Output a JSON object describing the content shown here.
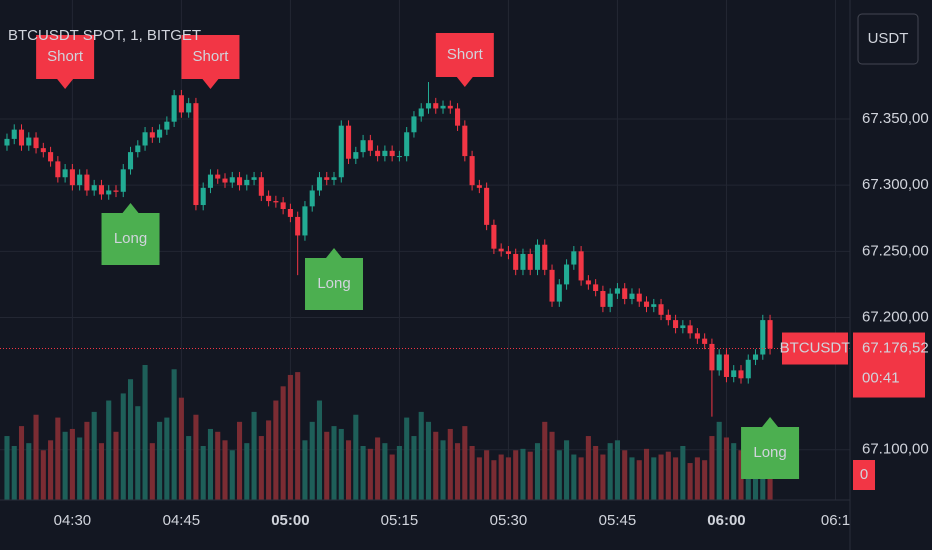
{
  "chart_data": {
    "type": "candlestick",
    "title": "BTCUSDT SPOT, 1, BITGET",
    "currency": "USDT",
    "up_color": "#22ab94",
    "down_color": "#f23645",
    "volume_up_color": "#1e5f59",
    "volume_down_color": "#7b2c33",
    "grid": true,
    "open": [
      67330,
      67335,
      67342,
      67330,
      67336,
      67328,
      67325,
      67318,
      67306,
      67312,
      67300,
      67308,
      67296,
      67300,
      67293,
      67296,
      67295,
      67312,
      67325,
      67330,
      67340,
      67336,
      67342,
      67348,
      67368,
      67355,
      67362,
      67285,
      67298,
      67308,
      67305,
      67302,
      67306,
      67300,
      67304,
      67306,
      67292,
      67288,
      67287,
      67282,
      67276,
      67262,
      67284,
      67296,
      67306,
      67304,
      67306,
      67345,
      67320,
      67325,
      67334,
      67326,
      67322,
      67326,
      67322,
      67322,
      67340,
      67352,
      67358,
      67362,
      67358,
      67360,
      67358,
      67345,
      67322,
      67300,
      67298,
      67270,
      67252,
      67250,
      67248,
      67236,
      67248,
      67236,
      67255,
      67236,
      67212,
      67225,
      67240,
      67250,
      67228,
      67225,
      67220,
      67208,
      67218,
      67222,
      67214,
      67218,
      67212,
      67208,
      67210,
      67202,
      67198,
      67192,
      67194,
      67188,
      67184,
      67180,
      67160,
      67172,
      67155,
      67160,
      67154,
      67168,
      67172,
      67198
    ],
    "high": [
      67339,
      67346,
      67346,
      67340,
      67340,
      67332,
      67329,
      67322,
      67316,
      67316,
      67312,
      67312,
      67304,
      67304,
      67300,
      67300,
      67316,
      67329,
      67334,
      67344,
      67344,
      67346,
      67352,
      67372,
      67372,
      67366,
      67366,
      67302,
      67312,
      67312,
      67309,
      67310,
      67310,
      67308,
      67310,
      67310,
      67296,
      67292,
      67291,
      67286,
      67280,
      67288,
      67300,
      67310,
      67310,
      67310,
      67349,
      67349,
      67329,
      67338,
      67338,
      67330,
      67330,
      67330,
      67326,
      67344,
      67356,
      67362,
      67378,
      67366,
      67364,
      67364,
      67362,
      67349,
      67326,
      67304,
      67302,
      67274,
      67256,
      67254,
      67252,
      67252,
      67252,
      67259,
      67259,
      67240,
      67229,
      67244,
      67254,
      67254,
      67232,
      67229,
      67224,
      67222,
      67226,
      67226,
      67222,
      67222,
      67216,
      67214,
      67214,
      67206,
      67202,
      67198,
      67198,
      67192,
      67188,
      67184,
      67176,
      67176,
      67164,
      67164,
      67172,
      67176,
      67202,
      67202
    ],
    "low": [
      67326,
      67331,
      67326,
      67326,
      67324,
      67321,
      67314,
      67302,
      67302,
      67296,
      67296,
      67292,
      67292,
      67289,
      67289,
      67291,
      67291,
      67308,
      67321,
      67326,
      67332,
      67332,
      67338,
      67344,
      67351,
      67351,
      67281,
      67281,
      67294,
      67301,
      67298,
      67298,
      67296,
      67296,
      67300,
      67288,
      67284,
      67283,
      67278,
      67272,
      67232,
      67258,
      67280,
      67292,
      67300,
      67300,
      67302,
      67316,
      67316,
      67321,
      67322,
      67318,
      67318,
      67318,
      67318,
      67318,
      67336,
      67348,
      67354,
      67354,
      67354,
      67354,
      67341,
      67318,
      67296,
      67294,
      67266,
      67248,
      67246,
      67244,
      67232,
      67232,
      67232,
      67232,
      67232,
      67208,
      67208,
      67221,
      67236,
      67224,
      67221,
      67216,
      67204,
      67204,
      67214,
      67210,
      67210,
      67208,
      67204,
      67204,
      67198,
      67194,
      67188,
      67188,
      67184,
      67180,
      67176,
      67125,
      67156,
      67151,
      67151,
      67150,
      67150,
      67164,
      67168,
      67172
    ],
    "close": [
      67335,
      67342,
      67330,
      67336,
      67328,
      67325,
      67318,
      67306,
      67312,
      67300,
      67308,
      67296,
      67300,
      67293,
      67296,
      67295,
      67312,
      67325,
      67330,
      67340,
      67336,
      67342,
      67348,
      67368,
      67355,
      67362,
      67285,
      67298,
      67308,
      67305,
      67302,
      67306,
      67300,
      67304,
      67306,
      67292,
      67288,
      67287,
      67282,
      67276,
      67262,
      67284,
      67296,
      67306,
      67304,
      67306,
      67345,
      67320,
      67325,
      67334,
      67326,
      67322,
      67326,
      67322,
      67322,
      67340,
      67352,
      67358,
      67362,
      67358,
      67360,
      67358,
      67345,
      67322,
      67300,
      67298,
      67270,
      67252,
      67250,
      67248,
      67236,
      67248,
      67236,
      67255,
      67236,
      67212,
      67225,
      67240,
      67250,
      67228,
      67225,
      67220,
      67208,
      67218,
      67222,
      67214,
      67218,
      67212,
      67208,
      67210,
      67202,
      67198,
      67192,
      67194,
      67188,
      67184,
      67180,
      67160,
      67172,
      67155,
      67160,
      67154,
      67168,
      67172,
      67198,
      67176.52
    ],
    "volume": [
      45,
      38,
      52,
      40,
      60,
      35,
      42,
      58,
      48,
      50,
      44,
      55,
      62,
      40,
      70,
      48,
      75,
      85,
      66,
      95,
      40,
      55,
      58,
      92,
      72,
      45,
      60,
      38,
      50,
      48,
      42,
      35,
      55,
      40,
      62,
      45,
      56,
      70,
      80,
      88,
      90,
      42,
      55,
      70,
      48,
      52,
      50,
      42,
      60,
      38,
      36,
      44,
      40,
      32,
      38,
      58,
      45,
      62,
      55,
      48,
      42,
      50,
      40,
      52,
      38,
      30,
      35,
      28,
      32,
      30,
      35,
      36,
      34,
      40,
      55,
      48,
      35,
      42,
      32,
      30,
      45,
      38,
      32,
      40,
      42,
      35,
      30,
      28,
      36,
      30,
      32,
      34,
      30,
      38,
      26,
      30,
      28,
      45,
      55,
      44,
      40,
      35,
      28,
      38,
      36,
      25
    ],
    "ylim": [
      67062,
      67440
    ],
    "yticks": [
      {
        "value": 67100,
        "label": "67.100,00"
      },
      {
        "value": 67200,
        "label": "67.200,00"
      },
      {
        "value": 67250,
        "label": "67.250,00"
      },
      {
        "value": 67300,
        "label": "67.300,00"
      },
      {
        "value": 67350,
        "label": "67.350,00"
      }
    ],
    "xlim": [
      -0.96,
      116
    ],
    "xticks": [
      {
        "value": 9,
        "label": "04:30"
      },
      {
        "value": 24,
        "label": "04:45"
      },
      {
        "value": 39,
        "label": "05:00"
      },
      {
        "value": 54,
        "label": "05:15"
      },
      {
        "value": 69,
        "label": "05:30"
      },
      {
        "value": 84,
        "label": "05:45"
      },
      {
        "value": 99,
        "label": "06:00"
      },
      {
        "value": 114,
        "label": "06:1"
      }
    ],
    "signals": [
      {
        "label": "Short",
        "index": 8
      },
      {
        "label": "Short",
        "index": 28
      },
      {
        "label": "Short",
        "index": 63
      },
      {
        "label": "Long",
        "index": 17
      },
      {
        "label": "Long",
        "index": 45
      },
      {
        "label": "Long",
        "index": 105
      }
    ],
    "symbol_label": "BTCUSDT",
    "current_price": {
      "value": 67176.52,
      "label": "67.176,52"
    },
    "countdown": "00:41",
    "volume_badge": 0
  }
}
